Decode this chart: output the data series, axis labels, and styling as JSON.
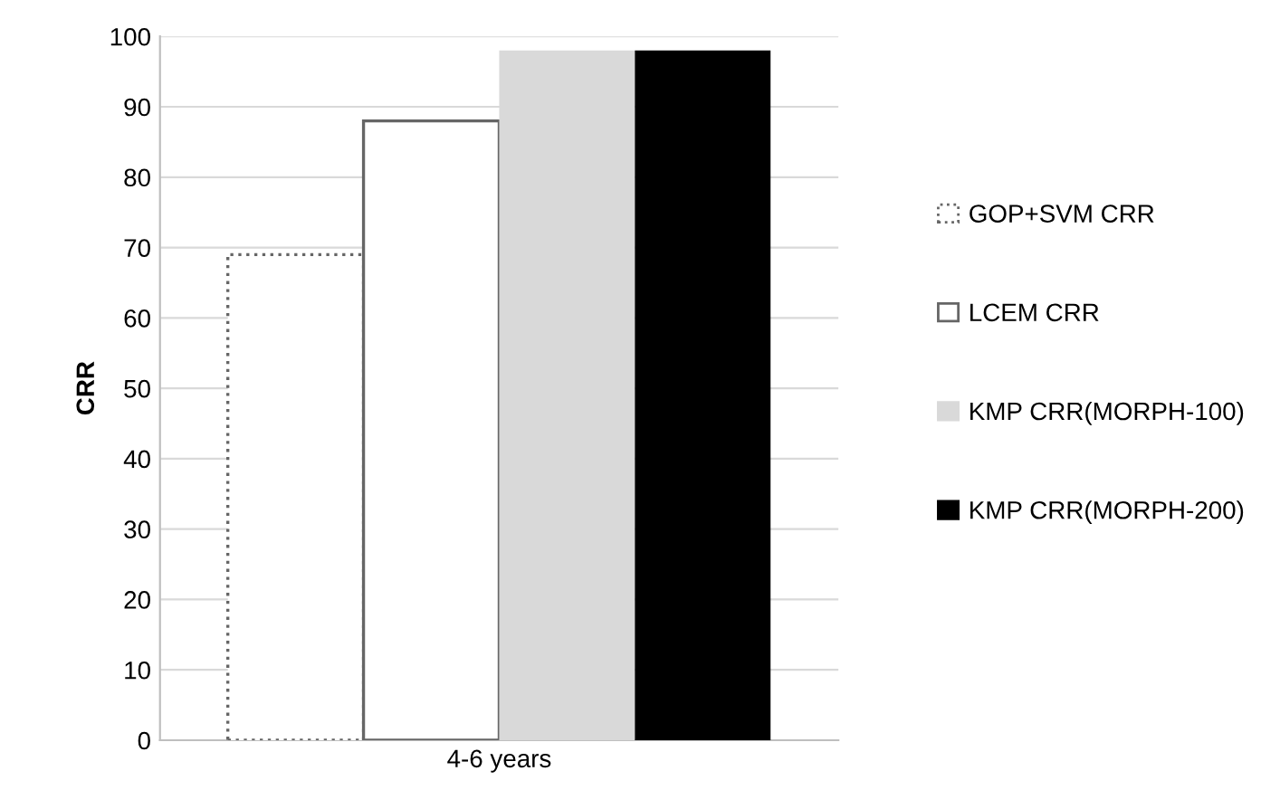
{
  "chart_data": {
    "type": "bar",
    "ylabel": "CRR",
    "categories": [
      "4-6 years"
    ],
    "series": [
      {
        "name": "GOP+SVM CRR",
        "color": "#ffffff",
        "line_style": "dotted",
        "values": [
          69
        ]
      },
      {
        "name": "LCEM CRR",
        "color": "#ffffff",
        "line_style": "solid",
        "values": [
          88
        ]
      },
      {
        "name": "KMP CRR(MORPH-100)",
        "color": "#d9d9d9",
        "values": [
          98
        ]
      },
      {
        "name": "KMP CRR(MORPH-200)",
        "color": "#000000",
        "values": [
          98
        ]
      }
    ],
    "ylim": [
      0,
      100
    ],
    "yticks": [
      0,
      10,
      20,
      30,
      40,
      50,
      60,
      70,
      80,
      90,
      100
    ],
    "grid": "y",
    "legend": "right"
  }
}
